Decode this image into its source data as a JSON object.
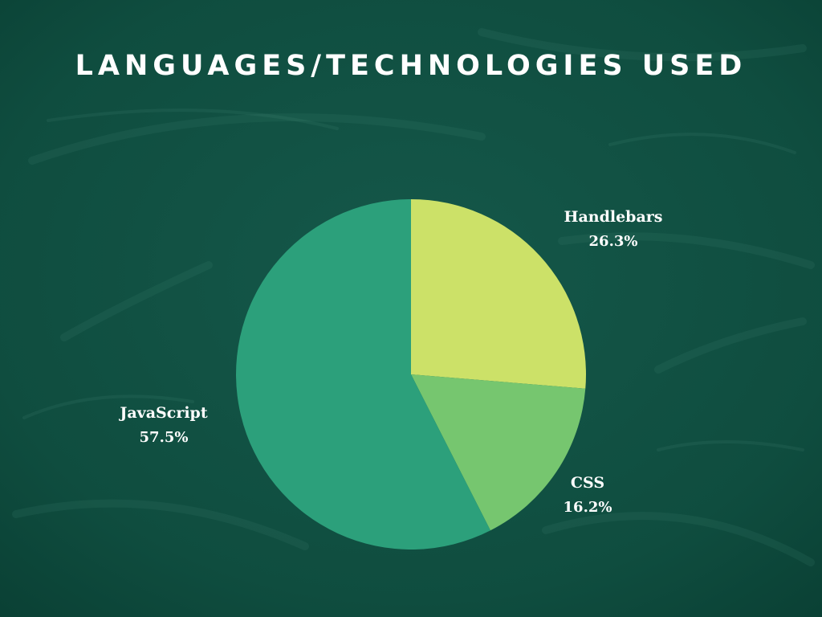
{
  "title": "LANGUAGES/TECHNOLOGIES USED",
  "colors": {
    "background": "#0f4f40",
    "handlebars": "#cce168",
    "css": "#76c66f",
    "javascript": "#2ca07b",
    "text": "#ffffff"
  },
  "chart_data": {
    "type": "pie",
    "title": "LANGUAGES/TECHNOLOGIES USED",
    "slices": [
      {
        "label": "Handlebars",
        "value": 26.3,
        "value_label": "26.3%",
        "color": "#cce168"
      },
      {
        "label": "CSS",
        "value": 16.2,
        "value_label": "16.2%",
        "color": "#76c66f"
      },
      {
        "label": "JavaScript",
        "value": 57.5,
        "value_label": "57.5%",
        "color": "#2ca07b"
      }
    ],
    "start_angle": "12 o'clock",
    "direction": "clockwise"
  }
}
